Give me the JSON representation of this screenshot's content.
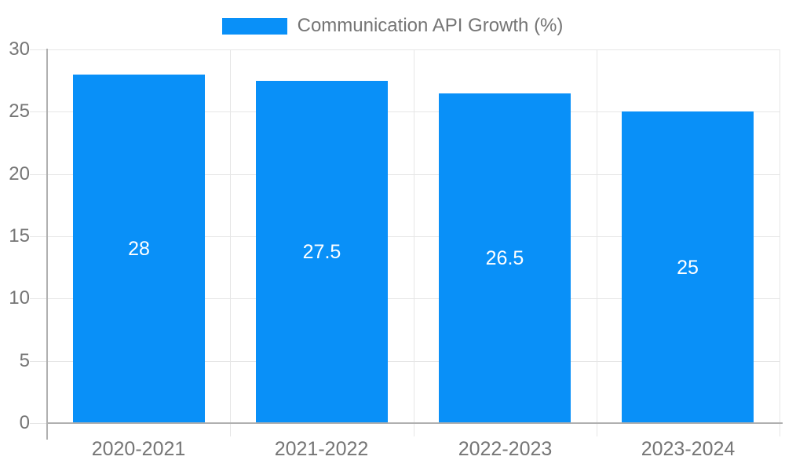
{
  "colors": {
    "bar": "#0990F8",
    "grid": "#E6E6E6",
    "axis": "#B0B0B0",
    "text": "#757575",
    "value_label": "#FFFFFF",
    "background": "#FFFFFF"
  },
  "chart_data": {
    "type": "bar",
    "title": "",
    "categories": [
      "2020-2021",
      "2021-2022",
      "2022-2023",
      "2023-2024"
    ],
    "series": [
      {
        "name": "Communication API Growth (%)",
        "values": [
          28,
          27.5,
          26.5,
          25
        ],
        "labels": [
          "28",
          "27.5",
          "26.5",
          "25"
        ],
        "color": "#0990F8"
      }
    ],
    "xlabel": "",
    "ylabel": "",
    "ylim": [
      0,
      30
    ],
    "yticks": [
      0,
      5,
      10,
      15,
      20,
      25,
      30
    ],
    "grid": true,
    "legend_position": "top"
  }
}
